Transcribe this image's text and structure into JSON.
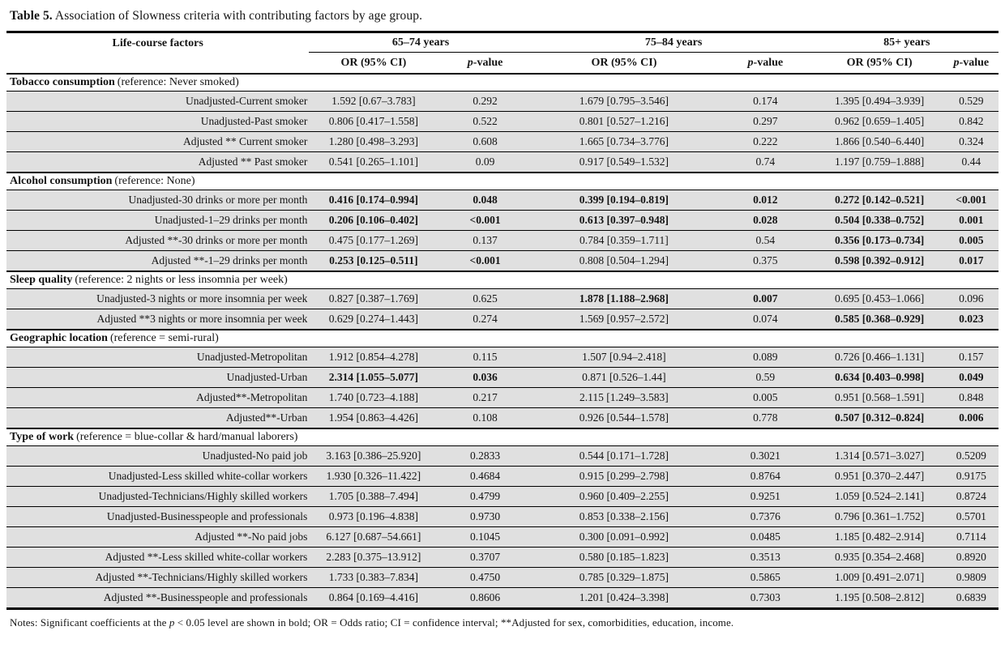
{
  "colors": {
    "row_fill": "#e0e0e0",
    "rule": "#000000",
    "background": "#ffffff",
    "text": "#141414"
  },
  "title": {
    "label": "Table 5.",
    "text": " Association of Slowness criteria with contributing factors by age group."
  },
  "table": {
    "factor_header": "Life-course factors",
    "groups": [
      {
        "label": "65–74 years"
      },
      {
        "label": "75–84 years"
      },
      {
        "label": "85+ years"
      }
    ],
    "or_label": "OR (95% CI)",
    "p_label_italic": "p",
    "p_label_rest": "-value",
    "sections": [
      {
        "name": "Tobacco consumption",
        "reference": "(reference: Never smoked)",
        "rows": [
          {
            "factor": "Unadjusted-Current smoker",
            "values": [
              "1.592 [0.67–3.783]",
              "0.292",
              "1.679 [0.795–3.546]",
              "0.174",
              "1.395 [0.494–3.939]",
              "0.529"
            ]
          },
          {
            "factor": "Unadjusted-Past smoker",
            "values": [
              "0.806 [0.417–1.558]",
              "0.522",
              "0.801 [0.527–1.216]",
              "0.297",
              "0.962 [0.659–1.405]",
              "0.842"
            ]
          },
          {
            "factor": "Adjusted ** Current smoker",
            "values": [
              "1.280 [0.498–3.293]",
              "0.608",
              "1.665 [0.734–3.776]",
              "0.222",
              "1.866 [0.540–6.440]",
              "0.324"
            ]
          },
          {
            "factor": "Adjusted ** Past smoker",
            "values": [
              "0.541 [0.265–1.101]",
              "0.09",
              "0.917 [0.549–1.532]",
              "0.74",
              "1.197 [0.759–1.888]",
              "0.44"
            ]
          }
        ]
      },
      {
        "name": "Alcohol consumption",
        "reference": "(reference: None)",
        "rows": [
          {
            "factor": "Unadjusted-30 drinks or more per month",
            "values": [
              "0.416 [0.174–0.994]",
              "0.048",
              "0.399 [0.194–0.819]",
              "0.012",
              "0.272 [0.142–0.521]",
              "<0.001"
            ],
            "bold": [
              1,
              1,
              1,
              1,
              1,
              1
            ]
          },
          {
            "factor": "Unadjusted-1–29 drinks per month",
            "values": [
              "0.206 [0.106–0.402]",
              "<0.001",
              "0.613 [0.397–0.948]",
              "0.028",
              "0.504 [0.338–0.752]",
              "0.001"
            ],
            "bold": [
              1,
              1,
              1,
              1,
              1,
              1
            ]
          },
          {
            "factor": "Adjusted **-30 drinks or more per month",
            "values": [
              "0.475 [0.177–1.269]",
              "0.137",
              "0.784 [0.359–1.711]",
              "0.54",
              "0.356 [0.173–0.734]",
              "0.005"
            ],
            "bold": [
              0,
              0,
              0,
              0,
              1,
              1
            ]
          },
          {
            "factor": "Adjusted **-1–29 drinks per month",
            "values": [
              "0.253 [0.125–0.511]",
              "<0.001",
              "0.808 [0.504–1.294]",
              "0.375",
              "0.598 [0.392–0.912]",
              "0.017"
            ],
            "bold": [
              1,
              1,
              0,
              0,
              1,
              1
            ]
          }
        ]
      },
      {
        "name": "Sleep quality",
        "reference": "(reference: 2 nights or less insomnia per week)",
        "rows": [
          {
            "factor": "Unadjusted-3 nights or more insomnia per week",
            "values": [
              "0.827 [0.387–1.769]",
              "0.625",
              "1.878 [1.188–2.968]",
              "0.007",
              "0.695 [0.453–1.066]",
              "0.096"
            ],
            "bold": [
              0,
              0,
              1,
              1,
              0,
              0
            ]
          },
          {
            "factor": "Adjusted **3 nights or more insomnia per week",
            "values": [
              "0.629 [0.274–1.443]",
              "0.274",
              "1.569 [0.957–2.572]",
              "0.074",
              "0.585 [0.368–0.929]",
              "0.023"
            ],
            "bold": [
              0,
              0,
              0,
              0,
              1,
              1
            ]
          }
        ]
      },
      {
        "name": "Geographic location",
        "reference": "(reference = semi-rural)",
        "rows": [
          {
            "factor": "Unadjusted-Metropolitan",
            "values": [
              "1.912 [0.854–4.278]",
              "0.115",
              "1.507 [0.94–2.418]",
              "0.089",
              "0.726 [0.466–1.131]",
              "0.157"
            ]
          },
          {
            "factor": "Unadjusted-Urban",
            "values": [
              "2.314 [1.055–5.077]",
              "0.036",
              "0.871 [0.526–1.44]",
              "0.59",
              "0.634 [0.403–0.998]",
              "0.049"
            ],
            "bold": [
              1,
              1,
              0,
              0,
              1,
              1
            ]
          },
          {
            "factor": "Adjusted**-Metropolitan",
            "values": [
              "1.740 [0.723–4.188]",
              "0.217",
              "2.115 [1.249–3.583]",
              "0.005",
              "0.951 [0.568–1.591]",
              "0.848"
            ]
          },
          {
            "factor": "Adjusted**-Urban",
            "values": [
              "1.954 [0.863–4.426]",
              "0.108",
              "0.926 [0.544–1.578]",
              "0.778",
              "0.507 [0.312–0.824]",
              "0.006"
            ],
            "bold": [
              0,
              0,
              0,
              0,
              1,
              1
            ]
          }
        ]
      },
      {
        "name": "Type of work",
        "reference": "(reference = blue-collar & hard/manual laborers)",
        "rows": [
          {
            "factor": "Unadjusted-No paid job",
            "values": [
              "3.163 [0.386–25.920]",
              "0.2833",
              "0.544 [0.171–1.728]",
              "0.3021",
              "1.314 [0.571–3.027]",
              "0.5209"
            ]
          },
          {
            "factor": "Unadjusted-Less skilled white-collar workers",
            "values": [
              "1.930 [0.326–11.422]",
              "0.4684",
              "0.915 [0.299–2.798]",
              "0.8764",
              "0.951 [0.370–2.447]",
              "0.9175"
            ]
          },
          {
            "factor": "Unadjusted-Technicians/Highly skilled workers",
            "values": [
              "1.705 [0.388–7.494]",
              "0.4799",
              "0.960 [0.409–2.255]",
              "0.9251",
              "1.059 [0.524–2.141]",
              "0.8724"
            ]
          },
          {
            "factor": "Unadjusted-Businesspeople and professionals",
            "values": [
              "0.973 [0.196–4.838]",
              "0.9730",
              "0.853 [0.338–2.156]",
              "0.7376",
              "0.796 [0.361–1.752]",
              "0.5701"
            ]
          },
          {
            "factor": "Adjusted **-No paid jobs",
            "values": [
              "6.127 [0.687–54.661]",
              "0.1045",
              "0.300 [0.091–0.992]",
              "0.0485",
              "1.185 [0.482–2.914]",
              "0.7114"
            ]
          },
          {
            "factor": "Adjusted **-Less skilled white-collar workers",
            "values": [
              "2.283 [0.375–13.912]",
              "0.3707",
              "0.580 [0.185–1.823]",
              "0.3513",
              "0.935 [0.354–2.468]",
              "0.8920"
            ]
          },
          {
            "factor": "Adjusted **-Technicians/Highly skilled workers",
            "values": [
              "1.733 [0.383–7.834]",
              "0.4750",
              "0.785 [0.329–1.875]",
              "0.5865",
              "1.009 [0.491–2.071]",
              "0.9809"
            ]
          },
          {
            "factor": "Adjusted **-Businesspeople and professionals",
            "values": [
              "0.864 [0.169–4.416]",
              "0.8606",
              "1.201 [0.424–3.398]",
              "0.7303",
              "1.195 [0.508–2.812]",
              "0.6839"
            ]
          }
        ]
      }
    ]
  },
  "notes": {
    "prefix": "Notes: Significant coefficients at the ",
    "p_italic": "p",
    "suffix": " < 0.05 level are shown in bold; OR = Odds ratio; CI = confidence interval; **Adjusted for sex, comorbidities, education, income."
  }
}
